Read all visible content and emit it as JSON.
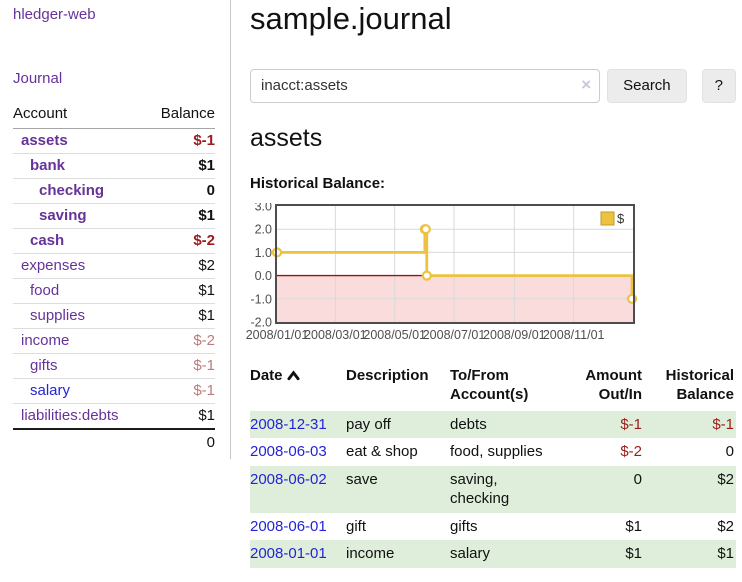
{
  "colors": {
    "purple_link": "#663399",
    "blue_link": "#2424d6",
    "negative_strong": "#9b1c1c",
    "negative_faded": "#bd7b7b",
    "row_green": "#deeeda",
    "chart_line": "#edc240",
    "chart_negative_fill": "#fbdcdc",
    "chart_zero_line": "#991111"
  },
  "sidebar": {
    "brand": "hledger-web",
    "nav": {
      "journal": "Journal"
    },
    "headers": {
      "account": "Account",
      "balance": "Balance"
    },
    "accounts": [
      {
        "name": "assets",
        "balance": "$-1",
        "indent": 1,
        "bold": true,
        "balance_style": "neg",
        "link_style": "purple"
      },
      {
        "name": "bank",
        "balance": "$1",
        "indent": 2,
        "bold": true,
        "balance_style": "",
        "link_style": "purple"
      },
      {
        "name": "checking",
        "balance": "0",
        "indent": 3,
        "bold": true,
        "balance_style": "",
        "link_style": "purple"
      },
      {
        "name": "saving",
        "balance": "$1",
        "indent": 3,
        "bold": true,
        "balance_style": "",
        "link_style": "purple"
      },
      {
        "name": "cash",
        "balance": "$-2",
        "indent": 2,
        "bold": true,
        "balance_style": "neg",
        "link_style": "purple"
      },
      {
        "name": "expenses",
        "balance": "$2",
        "indent": 1,
        "bold": false,
        "balance_style": "",
        "link_style": "purple"
      },
      {
        "name": "food",
        "balance": "$1",
        "indent": 2,
        "bold": false,
        "balance_style": "",
        "link_style": "purple"
      },
      {
        "name": "supplies",
        "balance": "$1",
        "indent": 2,
        "bold": false,
        "balance_style": "",
        "link_style": "purple"
      },
      {
        "name": "income",
        "balance": "$-2",
        "indent": 1,
        "bold": false,
        "balance_style": "neg-faded",
        "link_style": "purple"
      },
      {
        "name": "gifts",
        "balance": "$-1",
        "indent": 2,
        "bold": false,
        "balance_style": "neg-faded",
        "link_style": "purple"
      },
      {
        "name": "salary",
        "balance": "$-1",
        "indent": 2,
        "bold": false,
        "balance_style": "neg-faded",
        "link_style": "blue"
      },
      {
        "name": "liabilities:debts",
        "balance": "$1",
        "indent": 1,
        "bold": false,
        "balance_style": "",
        "link_style": "purple"
      }
    ],
    "total": "0"
  },
  "main": {
    "title": "sample.journal",
    "search": {
      "value": "inacct:assets",
      "clear_icon": "×",
      "search_button": "Search",
      "help_button": "?"
    },
    "account_heading": "assets",
    "chart_title": "Historical Balance:"
  },
  "chart_data": {
    "type": "line",
    "step": true,
    "title": "Historical Balance",
    "legend": "$",
    "legend_position": "top-right",
    "grid": true,
    "x_domain": [
      "2008-01-01",
      "2009-01-01"
    ],
    "ylim": [
      -2,
      3
    ],
    "y_ticks": [
      "3.0",
      "2.0",
      "1.0",
      "0.0",
      "-1.0",
      "-2.0"
    ],
    "x_ticks": [
      "2008/01/01",
      "2008/03/01",
      "2008/05/01",
      "2008/07/01",
      "2008/09/01",
      "2008/11/01"
    ],
    "points": [
      [
        "2008-01-01",
        1
      ],
      [
        "2008-06-01",
        2
      ],
      [
        "2008-06-02",
        2
      ],
      [
        "2008-06-03",
        0
      ],
      [
        "2008-12-31",
        -1
      ]
    ]
  },
  "table": {
    "headers": {
      "date": "Date",
      "description": "Description",
      "accounts": "To/From Account(s)",
      "amount": "Amount Out/In",
      "balance": "Historical Balance"
    },
    "rows": [
      {
        "date": "2008-12-31",
        "description": "pay off",
        "accounts": "debts",
        "amount": "$-1",
        "amount_style": "neg",
        "balance": "$-1",
        "balance_style": "neg",
        "shaded": true
      },
      {
        "date": "2008-06-03",
        "description": "eat & shop",
        "accounts": "food, supplies",
        "amount": "$-2",
        "amount_style": "neg",
        "balance": "0",
        "balance_style": "",
        "shaded": false
      },
      {
        "date": "2008-06-02",
        "description": "save",
        "accounts": "saving, checking",
        "amount": "0",
        "amount_style": "",
        "balance": "$2",
        "balance_style": "",
        "shaded": true
      },
      {
        "date": "2008-06-01",
        "description": "gift",
        "accounts": "gifts",
        "amount": "$1",
        "amount_style": "",
        "balance": "$2",
        "balance_style": "",
        "shaded": false
      },
      {
        "date": "2008-01-01",
        "description": "income",
        "accounts": "salary",
        "amount": "$1",
        "amount_style": "",
        "balance": "$1",
        "balance_style": "",
        "shaded": true
      }
    ]
  }
}
